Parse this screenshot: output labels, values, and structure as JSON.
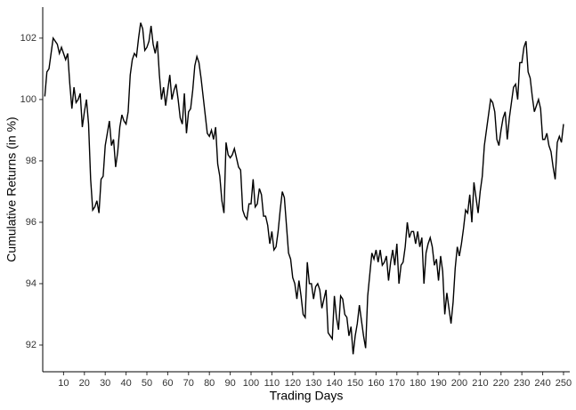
{
  "chart_data": {
    "type": "line",
    "xlabel": "Trading Days",
    "ylabel": "Cumulative Returns (in %)",
    "xlim": [
      0,
      253
    ],
    "ylim": [
      91.13,
      103.01
    ],
    "xticks": [
      10,
      20,
      30,
      40,
      50,
      60,
      70,
      80,
      90,
      100,
      110,
      120,
      130,
      140,
      150,
      160,
      170,
      180,
      190,
      200,
      210,
      220,
      230,
      240,
      250
    ],
    "yticks": [
      92,
      94,
      96,
      98,
      100,
      102
    ],
    "grid": false,
    "series": [
      {
        "color": "#000000",
        "x": [
          1,
          2,
          3,
          4,
          5,
          6,
          7,
          8,
          9,
          10,
          11,
          12,
          13,
          14,
          15,
          16,
          17,
          18,
          19,
          20,
          21,
          22,
          23,
          24,
          25,
          26,
          27,
          28,
          29,
          30,
          31,
          32,
          33,
          34,
          35,
          36,
          37,
          38,
          39,
          40,
          41,
          42,
          43,
          44,
          45,
          46,
          47,
          48,
          49,
          50,
          51,
          52,
          53,
          54,
          55,
          56,
          57,
          58,
          59,
          60,
          61,
          62,
          63,
          64,
          65,
          66,
          67,
          68,
          69,
          70,
          71,
          72,
          73,
          74,
          75,
          76,
          77,
          78,
          79,
          80,
          81,
          82,
          83,
          84,
          85,
          86,
          87,
          88,
          89,
          90,
          91,
          92,
          93,
          94,
          95,
          96,
          97,
          98,
          99,
          100,
          101,
          102,
          103,
          104,
          105,
          106,
          107,
          108,
          109,
          110,
          111,
          112,
          113,
          114,
          115,
          116,
          117,
          118,
          119,
          120,
          121,
          122,
          123,
          124,
          125,
          126,
          127,
          128,
          129,
          130,
          131,
          132,
          133,
          134,
          135,
          136,
          137,
          138,
          139,
          140,
          141,
          142,
          143,
          144,
          145,
          146,
          147,
          148,
          149,
          150,
          151,
          152,
          153,
          154,
          155,
          156,
          157,
          158,
          159,
          160,
          161,
          162,
          163,
          164,
          165,
          166,
          167,
          168,
          169,
          170,
          171,
          172,
          173,
          174,
          175,
          176,
          177,
          178,
          179,
          180,
          181,
          182,
          183,
          184,
          185,
          186,
          187,
          188,
          189,
          190,
          191,
          192,
          193,
          194,
          195,
          196,
          197,
          198,
          199,
          200,
          201,
          202,
          203,
          204,
          205,
          206,
          207,
          208,
          209,
          210,
          211,
          212,
          213,
          214,
          215,
          216,
          217,
          218,
          219,
          220,
          221,
          222,
          223,
          224,
          225,
          226,
          227,
          228,
          229,
          230,
          231,
          232,
          233,
          234,
          235,
          236,
          237,
          238,
          239,
          240,
          241,
          242,
          243,
          244,
          245,
          246,
          247,
          248,
          249,
          250
        ],
        "values": [
          100.1,
          100.9,
          101.0,
          101.5,
          102.0,
          101.9,
          101.8,
          101.5,
          101.7,
          101.5,
          101.3,
          101.5,
          100.5,
          99.7,
          100.4,
          99.9,
          100.0,
          100.2,
          99.1,
          99.6,
          100.0,
          99.2,
          97.4,
          96.4,
          96.5,
          96.7,
          96.3,
          97.4,
          97.5,
          98.5,
          98.9,
          99.3,
          98.5,
          98.7,
          97.8,
          98.3,
          99.1,
          99.5,
          99.3,
          99.2,
          99.6,
          100.8,
          101.3,
          101.5,
          101.4,
          102.0,
          102.5,
          102.3,
          101.6,
          101.7,
          101.9,
          102.4,
          101.8,
          101.5,
          101.9,
          100.8,
          100.0,
          100.4,
          99.8,
          100.3,
          100.8,
          100.0,
          100.3,
          100.5,
          100.0,
          99.4,
          99.2,
          100.2,
          98.9,
          99.6,
          99.7,
          100.3,
          101.1,
          101.4,
          101.2,
          100.7,
          100.1,
          99.5,
          98.9,
          98.8,
          99.0,
          98.7,
          99.1,
          97.9,
          97.5,
          96.7,
          96.3,
          98.6,
          98.2,
          98.1,
          98.2,
          98.4,
          98.1,
          97.8,
          97.7,
          96.4,
          96.2,
          96.1,
          96.6,
          96.6,
          97.4,
          96.5,
          96.6,
          97.1,
          96.9,
          96.2,
          96.2,
          95.9,
          95.3,
          95.7,
          95.1,
          95.2,
          95.7,
          96.4,
          97.0,
          96.8,
          95.9,
          95.0,
          94.8,
          94.2,
          94.0,
          93.5,
          94.1,
          93.6,
          93.0,
          92.9,
          94.7,
          94.0,
          94.0,
          93.5,
          93.9,
          94.0,
          93.8,
          93.2,
          93.5,
          93.8,
          92.4,
          92.3,
          92.2,
          93.6,
          92.9,
          92.5,
          93.6,
          93.5,
          93.0,
          92.9,
          92.3,
          92.6,
          91.7,
          92.3,
          92.7,
          93.3,
          92.8,
          92.3,
          91.9,
          93.6,
          94.3,
          95.0,
          94.8,
          95.1,
          94.7,
          95.1,
          94.6,
          94.7,
          94.9,
          94.1,
          94.7,
          95.1,
          94.6,
          95.3,
          94.0,
          94.6,
          94.7,
          95.2,
          96.0,
          95.5,
          95.7,
          95.7,
          95.3,
          95.7,
          95.2,
          95.5,
          94.0,
          95.0,
          95.3,
          95.5,
          95.2,
          94.6,
          94.8,
          94.1,
          94.9,
          94.4,
          93.0,
          93.7,
          93.2,
          92.7,
          93.4,
          94.5,
          95.2,
          94.9,
          95.3,
          95.8,
          96.4,
          96.3,
          96.9,
          96.0,
          97.3,
          96.8,
          96.3,
          97.0,
          97.5,
          98.5,
          99.0,
          99.5,
          100.0,
          99.9,
          99.6,
          98.7,
          98.5,
          99.0,
          99.4,
          99.6,
          98.7,
          99.4,
          99.9,
          100.4,
          100.5,
          100.0,
          101.2,
          101.2,
          101.7,
          101.9,
          100.9,
          100.7,
          100.1,
          99.6,
          99.8,
          100.0,
          99.7,
          98.7,
          98.7,
          98.9,
          98.5,
          98.3,
          97.8,
          97.4,
          98.6,
          98.8,
          98.6,
          99.2
        ]
      }
    ]
  }
}
